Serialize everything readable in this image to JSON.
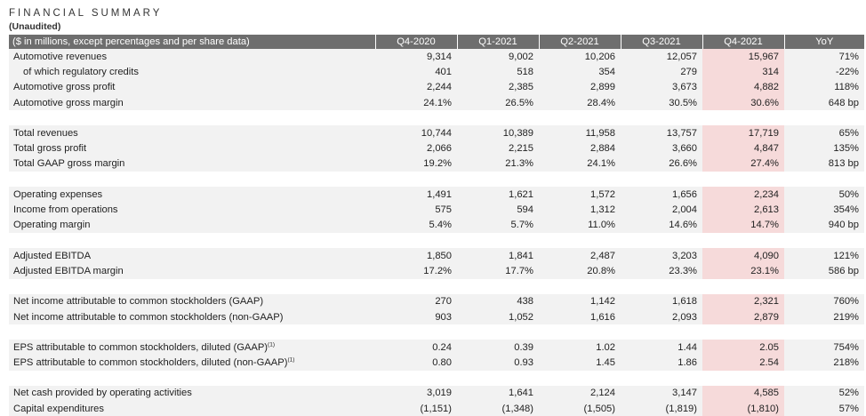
{
  "header": {
    "title": "FINANCIAL SUMMARY",
    "subtitle": "(Unaudited)"
  },
  "table": {
    "columns": [
      "($ in millions, except percentages and per share data)",
      "Q4-2020",
      "Q1-2021",
      "Q2-2021",
      "Q3-2021",
      "Q4-2021",
      "YoY"
    ],
    "highlight_color": "#f6dada",
    "header_color": "#6e6e6e",
    "row_color": "#f2f2f2",
    "groups": [
      {
        "rows": [
          {
            "label": "Automotive revenues",
            "values": [
              "9,314",
              "9,002",
              "10,206",
              "12,057",
              "15,967",
              "71%"
            ]
          },
          {
            "label": "of which regulatory credits",
            "values": [
              "401",
              "518",
              "354",
              "279",
              "314",
              "-22%"
            ]
          },
          {
            "label": "Automotive gross profit",
            "values": [
              "2,244",
              "2,385",
              "2,899",
              "3,673",
              "4,882",
              "118%"
            ]
          },
          {
            "label": "Automotive gross margin",
            "values": [
              "24.1%",
              "26.5%",
              "28.4%",
              "30.5%",
              "30.6%",
              "648 bp"
            ]
          }
        ]
      },
      {
        "rows": [
          {
            "label": "Total revenues",
            "values": [
              "10,744",
              "10,389",
              "11,958",
              "13,757",
              "17,719",
              "65%"
            ]
          },
          {
            "label": "Total gross profit",
            "values": [
              "2,066",
              "2,215",
              "2,884",
              "3,660",
              "4,847",
              "135%"
            ]
          },
          {
            "label": "Total GAAP gross margin",
            "values": [
              "19.2%",
              "21.3%",
              "24.1%",
              "26.6%",
              "27.4%",
              "813 bp"
            ]
          }
        ]
      },
      {
        "rows": [
          {
            "label": "Operating expenses",
            "values": [
              "1,491",
              "1,621",
              "1,572",
              "1,656",
              "2,234",
              "50%"
            ]
          },
          {
            "label": "Income from operations",
            "values": [
              "575",
              "594",
              "1,312",
              "2,004",
              "2,613",
              "354%"
            ]
          },
          {
            "label": "Operating margin",
            "values": [
              "5.4%",
              "5.7%",
              "11.0%",
              "14.6%",
              "14.7%",
              "940 bp"
            ]
          }
        ]
      },
      {
        "rows": [
          {
            "label": "Adjusted EBITDA",
            "values": [
              "1,850",
              "1,841",
              "2,487",
              "3,203",
              "4,090",
              "121%"
            ]
          },
          {
            "label": "Adjusted EBITDA margin",
            "values": [
              "17.2%",
              "17.7%",
              "20.8%",
              "23.3%",
              "23.1%",
              "586 bp"
            ]
          }
        ]
      },
      {
        "rows": [
          {
            "label": "Net income attributable to common stockholders (GAAP)",
            "values": [
              "270",
              "438",
              "1,142",
              "1,618",
              "2,321",
              "760%"
            ]
          },
          {
            "label": "Net income attributable to common stockholders (non-GAAP)",
            "values": [
              "903",
              "1,052",
              "1,616",
              "2,093",
              "2,879",
              "219%"
            ]
          }
        ]
      },
      {
        "rows": [
          {
            "label": "EPS attributable to common stockholders, diluted (GAAP)",
            "sup": "(1)",
            "values": [
              "0.24",
              "0.39",
              "1.02",
              "1.44",
              "2.05",
              "754%"
            ]
          },
          {
            "label": "EPS attributable to common stockholders, diluted (non-GAAP)",
            "sup": "(1)",
            "values": [
              "0.80",
              "0.93",
              "1.45",
              "1.86",
              "2.54",
              "218%"
            ]
          }
        ]
      },
      {
        "rows": [
          {
            "label": "Net cash provided by operating activities",
            "values": [
              "3,019",
              "1,641",
              "2,124",
              "3,147",
              "4,585",
              "52%"
            ]
          },
          {
            "label": "Capital expenditures",
            "values": [
              "(1,151)",
              "(1,348)",
              "(1,505)",
              "(1,819)",
              "(1,810)",
              "57%"
            ]
          }
        ]
      }
    ]
  }
}
